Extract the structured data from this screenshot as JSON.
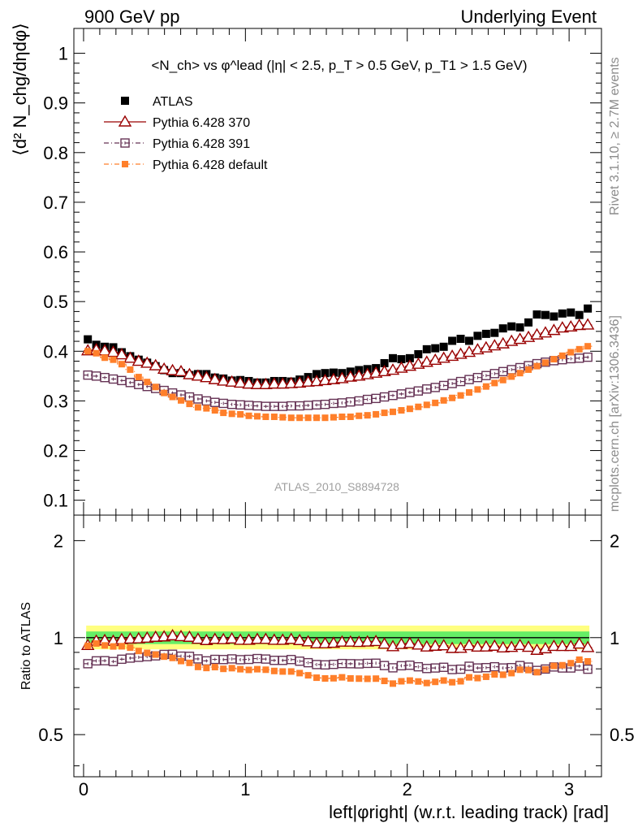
{
  "header": {
    "left": "900 GeV pp",
    "right": "Underlying Event"
  },
  "side_text": {
    "rivet": "Rivet 3.1.10, ≥ 2.7M events",
    "mcplots": "mcplots.cern.ch [arXiv:1306.3436]"
  },
  "analysis_id": "ATLAS_2010_S8894728",
  "colors": {
    "atlas": "#000000",
    "p370": "#990000",
    "p391": "#663355",
    "default": "#ff7f2a",
    "band_inner": "#66ee66",
    "band_outer": "#ffff80"
  },
  "chart_data": [
    {
      "type": "scatter",
      "title": "<N_ch> vs φ^lead (|η| < 2.5, p_T > 0.5 GeV, p_T1 > 1.5 GeV)",
      "ylabel": "⟨d² N_chg/dηdφ⟩",
      "xlim": [
        -0.06,
        3.2
      ],
      "ylim": [
        0.07,
        1.05
      ],
      "yticks": [
        "0.1",
        "0.2",
        "0.3",
        "0.4",
        "0.5",
        "0.6",
        "0.7",
        "0.8",
        "0.9",
        "1"
      ],
      "legend": "top-left",
      "x": [
        0.0262,
        0.0785,
        0.1309,
        0.1833,
        0.2356,
        0.288,
        0.3403,
        0.3927,
        0.4451,
        0.4974,
        0.5498,
        0.6021,
        0.6545,
        0.7069,
        0.7592,
        0.8116,
        0.8639,
        0.9163,
        0.9687,
        1.021,
        1.0734,
        1.1257,
        1.1781,
        1.2305,
        1.2828,
        1.3352,
        1.3875,
        1.4399,
        1.4923,
        1.5446,
        1.597,
        1.6493,
        1.7017,
        1.7541,
        1.8064,
        1.8588,
        1.9111,
        1.9635,
        2.0159,
        2.0682,
        2.1206,
        2.1729,
        2.2253,
        2.2777,
        2.33,
        2.3824,
        2.4347,
        2.4871,
        2.5395,
        2.5918,
        2.6442,
        2.6965,
        2.7489,
        2.8013,
        2.8536,
        2.906,
        2.9583,
        3.0107,
        3.0631,
        3.1154
      ],
      "series": [
        {
          "name": "ATLAS",
          "values": [
            0.424,
            0.413,
            0.409,
            0.408,
            0.398,
            0.39,
            0.383,
            0.377,
            0.37,
            0.362,
            0.356,
            0.356,
            0.352,
            0.354,
            0.354,
            0.347,
            0.345,
            0.341,
            0.342,
            0.34,
            0.337,
            0.337,
            0.34,
            0.34,
            0.339,
            0.343,
            0.348,
            0.354,
            0.356,
            0.357,
            0.356,
            0.359,
            0.362,
            0.364,
            0.366,
            0.376,
            0.386,
            0.384,
            0.386,
            0.394,
            0.404,
            0.406,
            0.409,
            0.421,
            0.425,
            0.421,
            0.431,
            0.435,
            0.437,
            0.446,
            0.45,
            0.448,
            0.458,
            0.474,
            0.473,
            0.47,
            0.476,
            0.478,
            0.473,
            0.486
          ]
        },
        {
          "name": "Pythia 6.428 370",
          "values": [
            0.401,
            0.403,
            0.401,
            0.398,
            0.393,
            0.386,
            0.38,
            0.376,
            0.371,
            0.364,
            0.361,
            0.359,
            0.353,
            0.35,
            0.347,
            0.343,
            0.34,
            0.338,
            0.336,
            0.334,
            0.333,
            0.333,
            0.334,
            0.334,
            0.335,
            0.336,
            0.338,
            0.339,
            0.341,
            0.343,
            0.345,
            0.348,
            0.35,
            0.353,
            0.356,
            0.359,
            0.362,
            0.366,
            0.37,
            0.374,
            0.378,
            0.382,
            0.386,
            0.39,
            0.394,
            0.398,
            0.403,
            0.407,
            0.411,
            0.415,
            0.42,
            0.424,
            0.428,
            0.433,
            0.437,
            0.442,
            0.447,
            0.449,
            0.452,
            0.453
          ]
        },
        {
          "name": "Pythia 6.428 391",
          "values": [
            0.352,
            0.35,
            0.347,
            0.344,
            0.341,
            0.337,
            0.333,
            0.329,
            0.325,
            0.321,
            0.316,
            0.312,
            0.308,
            0.304,
            0.3,
            0.297,
            0.295,
            0.293,
            0.292,
            0.291,
            0.29,
            0.289,
            0.289,
            0.289,
            0.29,
            0.29,
            0.291,
            0.292,
            0.293,
            0.295,
            0.296,
            0.298,
            0.3,
            0.303,
            0.305,
            0.308,
            0.311,
            0.314,
            0.317,
            0.32,
            0.324,
            0.327,
            0.331,
            0.335,
            0.339,
            0.343,
            0.347,
            0.351,
            0.355,
            0.359,
            0.363,
            0.367,
            0.371,
            0.375,
            0.378,
            0.381,
            0.383,
            0.385,
            0.386,
            0.388
          ]
        },
        {
          "name": "Pythia 6.428 default",
          "values": [
            0.4,
            0.396,
            0.387,
            0.383,
            0.374,
            0.363,
            0.348,
            0.338,
            0.328,
            0.316,
            0.308,
            0.301,
            0.294,
            0.287,
            0.285,
            0.281,
            0.276,
            0.274,
            0.273,
            0.27,
            0.269,
            0.268,
            0.268,
            0.267,
            0.266,
            0.266,
            0.266,
            0.266,
            0.266,
            0.267,
            0.268,
            0.268,
            0.27,
            0.271,
            0.273,
            0.276,
            0.278,
            0.281,
            0.284,
            0.288,
            0.292,
            0.296,
            0.301,
            0.306,
            0.311,
            0.317,
            0.323,
            0.329,
            0.336,
            0.342,
            0.349,
            0.356,
            0.363,
            0.37,
            0.377,
            0.384,
            0.391,
            0.398,
            0.404,
            0.41
          ]
        }
      ]
    },
    {
      "type": "scatter",
      "xlabel": "left|φright| (w.r.t. leading track) [rad]",
      "ylabel": "Ratio to ATLAS",
      "yscale": "log",
      "xlim": [
        -0.06,
        3.2
      ],
      "ylim": [
        0.37,
        2.4
      ],
      "xticks": [
        "0",
        "1",
        "2",
        "3"
      ],
      "yticks": [
        "0.5",
        "1",
        "2"
      ],
      "reference": 1,
      "bands": {
        "inner": [
          0.955,
          1.045
        ],
        "outer": [
          0.92,
          1.09
        ]
      },
      "series": [
        {
          "name": "Pythia 6.428 370",
          "values": [
            0.946,
            0.976,
            0.98,
            0.975,
            0.987,
            0.99,
            0.992,
            0.997,
            1.003,
            1.006,
            1.014,
            1.008,
            1.003,
            0.989,
            0.98,
            0.988,
            0.986,
            0.991,
            0.982,
            0.982,
            0.988,
            0.988,
            0.982,
            0.982,
            0.988,
            0.98,
            0.971,
            0.958,
            0.958,
            0.961,
            0.969,
            0.969,
            0.967,
            0.97,
            0.973,
            0.955,
            0.938,
            0.953,
            0.959,
            0.949,
            0.936,
            0.941,
            0.944,
            0.926,
            0.927,
            0.945,
            0.935,
            0.936,
            0.941,
            0.93,
            0.933,
            0.946,
            0.934,
            0.914,
            0.924,
            0.94,
            0.939,
            0.939,
            0.956,
            0.932
          ]
        },
        {
          "name": "Pythia 6.428 391",
          "values": [
            0.83,
            0.847,
            0.848,
            0.843,
            0.857,
            0.864,
            0.869,
            0.873,
            0.878,
            0.887,
            0.888,
            0.876,
            0.875,
            0.859,
            0.847,
            0.856,
            0.855,
            0.859,
            0.854,
            0.856,
            0.861,
            0.858,
            0.85,
            0.85,
            0.855,
            0.845,
            0.836,
            0.825,
            0.823,
            0.826,
            0.831,
            0.83,
            0.829,
            0.832,
            0.833,
            0.819,
            0.806,
            0.818,
            0.821,
            0.812,
            0.802,
            0.805,
            0.809,
            0.796,
            0.798,
            0.815,
            0.805,
            0.807,
            0.812,
            0.805,
            0.807,
            0.819,
            0.81,
            0.791,
            0.799,
            0.811,
            0.805,
            0.805,
            0.816,
            0.798
          ]
        },
        {
          "name": "Pythia 6.428 default",
          "values": [
            0.943,
            0.959,
            0.946,
            0.939,
            0.94,
            0.931,
            0.909,
            0.897,
            0.886,
            0.873,
            0.865,
            0.846,
            0.835,
            0.811,
            0.805,
            0.81,
            0.8,
            0.804,
            0.798,
            0.794,
            0.798,
            0.795,
            0.788,
            0.785,
            0.785,
            0.776,
            0.764,
            0.751,
            0.747,
            0.748,
            0.753,
            0.747,
            0.746,
            0.745,
            0.746,
            0.734,
            0.72,
            0.732,
            0.736,
            0.731,
            0.723,
            0.729,
            0.736,
            0.727,
            0.732,
            0.753,
            0.749,
            0.756,
            0.769,
            0.767,
            0.776,
            0.795,
            0.793,
            0.781,
            0.797,
            0.817,
            0.821,
            0.833,
            0.854,
            0.844
          ]
        }
      ]
    }
  ]
}
